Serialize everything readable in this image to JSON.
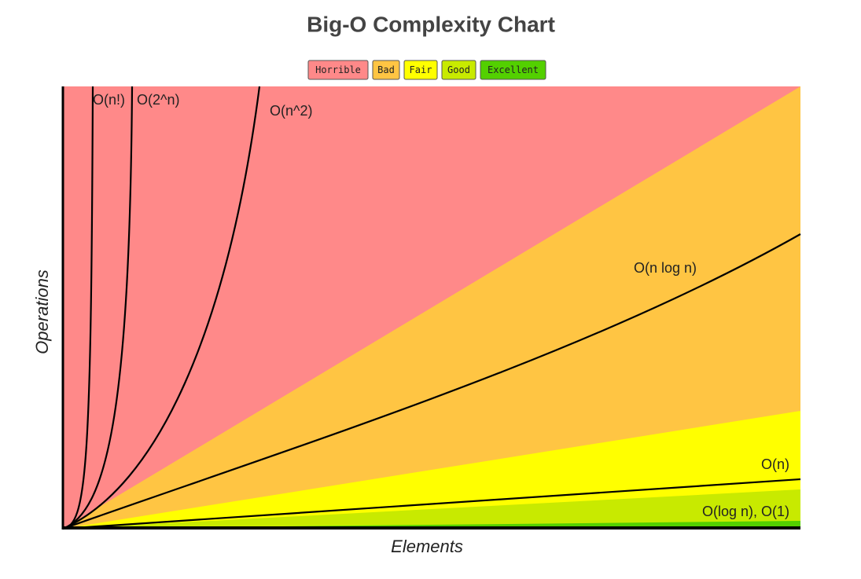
{
  "title": "Big-O Complexity Chart",
  "legend": [
    {
      "label": "Horrible",
      "color": "#ff8989"
    },
    {
      "label": "Bad",
      "color": "#ffc543"
    },
    {
      "label": "Fair",
      "color": "#ffff00"
    },
    {
      "label": "Good",
      "color": "#c8ea00"
    },
    {
      "label": "Excellent",
      "color": "#53d000"
    }
  ],
  "curves": [
    "O(n!)",
    "O(2^n)",
    "O(n^2)",
    "O(n log n)",
    "O(n)",
    "O(log n), O(1)"
  ],
  "axes": {
    "x": "Elements",
    "y": "Operations"
  }
}
